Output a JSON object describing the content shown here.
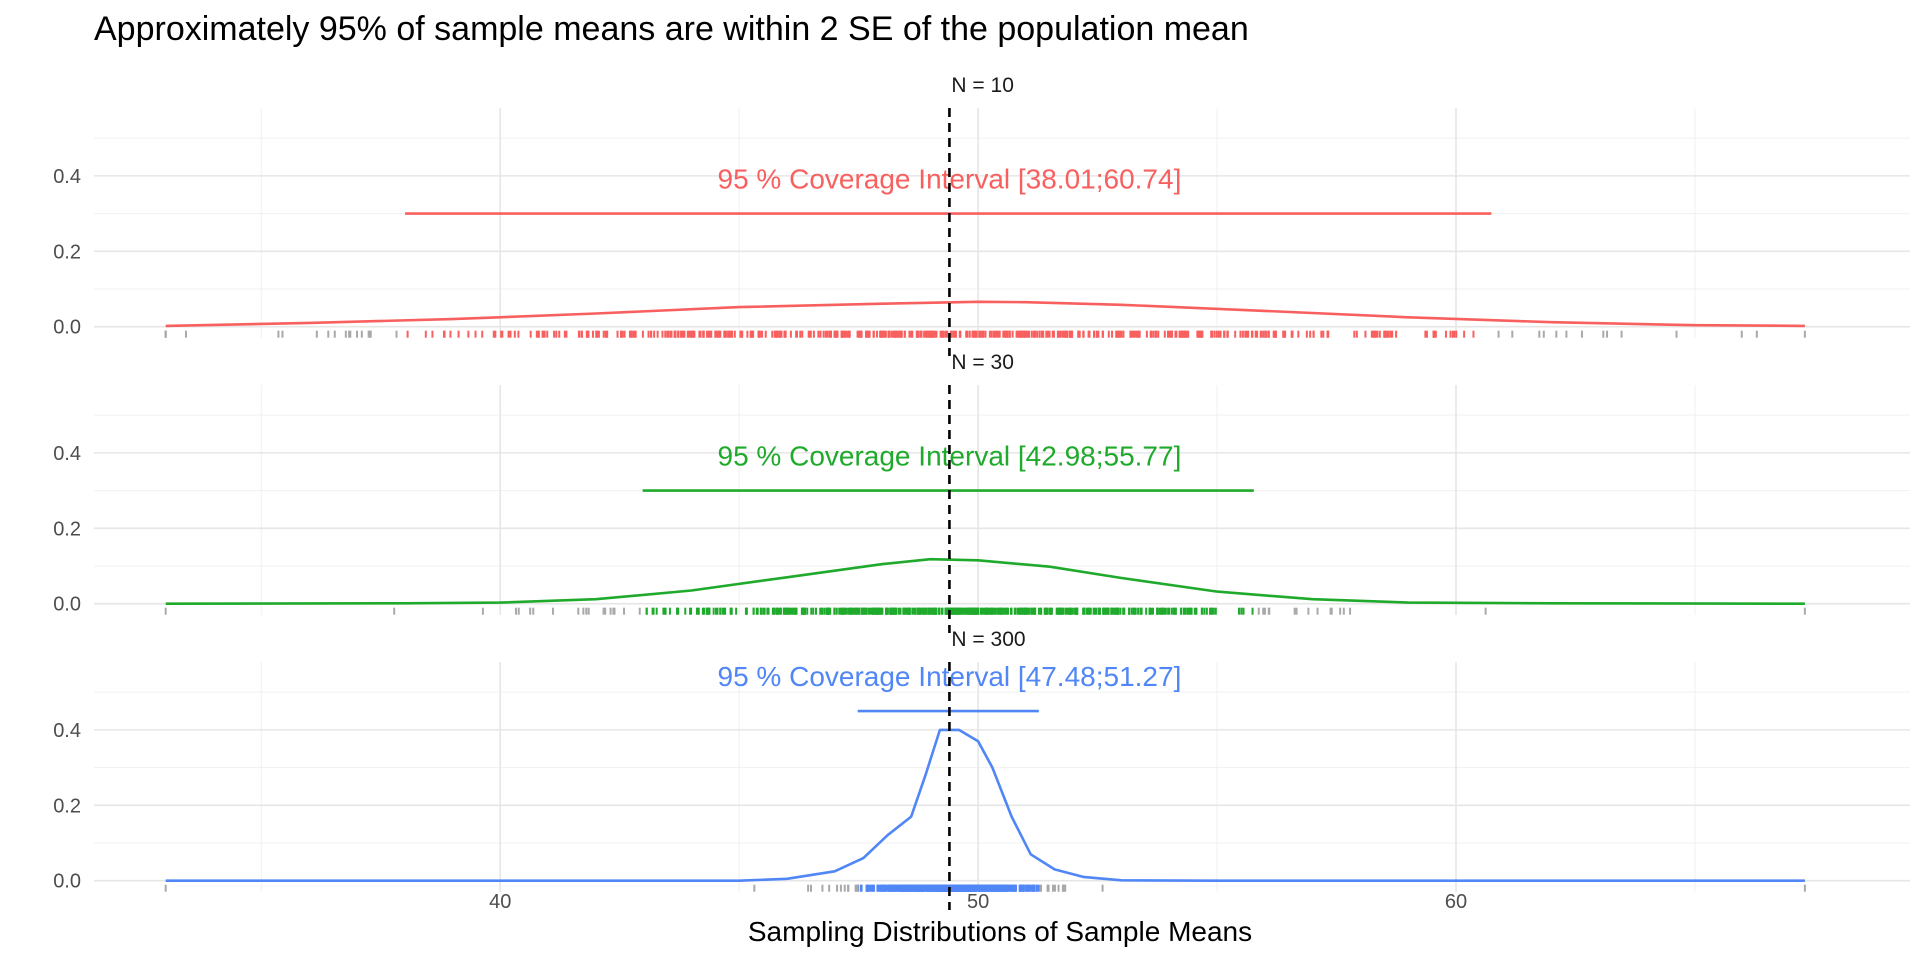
{
  "chart_data": {
    "type": "density-facets",
    "title": "Approximately 95% of sample means are within 2 SE of the population mean",
    "xlabel": "Sampling Distributions of Sample Means",
    "ylabel": "",
    "xlim": [
      31.5,
      69.5
    ],
    "ylim": [
      -0.03,
      0.58
    ],
    "x_ticks": [
      40,
      50,
      60
    ],
    "x_tick_labels": [
      "40",
      "50",
      "60"
    ],
    "y_ticks": [
      0.0,
      0.2,
      0.4
    ],
    "y_tick_labels": [
      "0.0",
      "0.2",
      "0.4"
    ],
    "grid": true,
    "population_mean": 49.4,
    "reference_line_style": "dashed black vertical at population mean",
    "rug_outside_color": "#a9a9a9",
    "panels": [
      {
        "strip_label": "N = 10",
        "color": "#f8605f",
        "ci_label": "95 % Coverage Interval [38.01;60.74]",
        "ci": [
          38.01,
          60.74
        ],
        "ci_y": 0.3,
        "label_y": 0.39,
        "range": [
          33.0,
          67.3
        ],
        "density_x": [
          33,
          36,
          39,
          42,
          45,
          48,
          50,
          51,
          53,
          56,
          59,
          62,
          65,
          67.3
        ],
        "density_y": [
          0.002,
          0.01,
          0.02,
          0.035,
          0.052,
          0.061,
          0.066,
          0.065,
          0.058,
          0.042,
          0.025,
          0.012,
          0.004,
          0.002
        ]
      },
      {
        "strip_label": "N = 30",
        "color": "#1faa2c",
        "ci_label": "95 % Coverage Interval [42.98;55.77]",
        "ci": [
          42.98,
          55.77
        ],
        "ci_y": 0.3,
        "label_y": 0.39,
        "range": [
          33.0,
          67.3
        ],
        "density_x": [
          33,
          38,
          40,
          42,
          44,
          46,
          48,
          49,
          50,
          51.5,
          53,
          55,
          57,
          59,
          62,
          67.3
        ],
        "density_y": [
          0.0,
          0.001,
          0.003,
          0.012,
          0.035,
          0.07,
          0.105,
          0.118,
          0.115,
          0.098,
          0.068,
          0.032,
          0.012,
          0.003,
          0.001,
          0.0
        ]
      },
      {
        "strip_label": "N = 300",
        "color": "#5086f5",
        "ci_label": "95 % Coverage Interval [47.48;51.27]",
        "ci": [
          47.48,
          51.27
        ],
        "ci_y": 0.45,
        "label_y": 0.54,
        "range": [
          33.0,
          67.3
        ],
        "density_x": [
          33,
          45,
          46,
          47,
          47.6,
          48.1,
          48.6,
          48.9,
          49.2,
          49.6,
          50.0,
          50.3,
          50.7,
          51.1,
          51.6,
          52.2,
          53,
          55,
          67.3
        ],
        "density_y": [
          0.0,
          0.0,
          0.005,
          0.025,
          0.06,
          0.12,
          0.17,
          0.28,
          0.4,
          0.4,
          0.37,
          0.3,
          0.17,
          0.07,
          0.03,
          0.01,
          0.001,
          0.0,
          0.0
        ]
      }
    ]
  }
}
